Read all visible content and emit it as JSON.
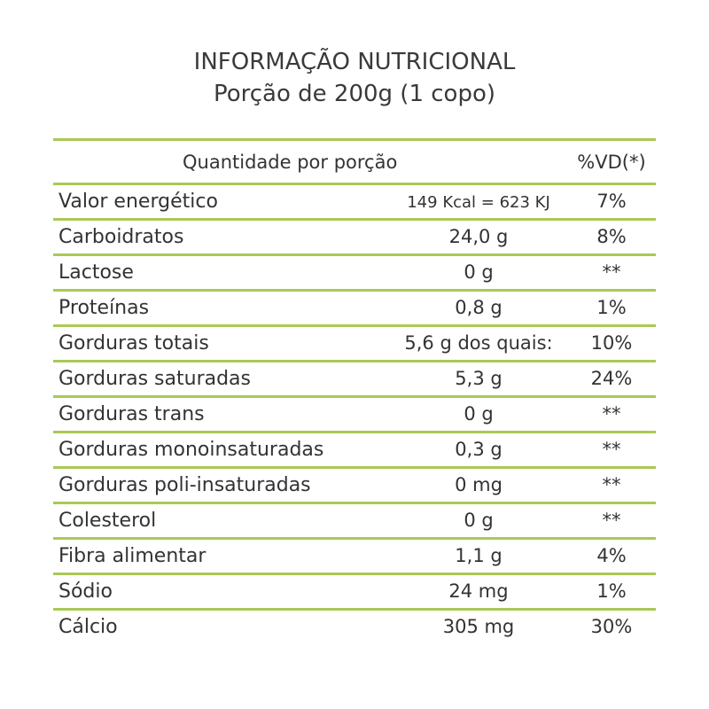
{
  "title": {
    "line1": "INFORMAÇÃO NUTRICIONAL",
    "line2": "Porção de 200g (1 copo)"
  },
  "header": {
    "quantity": "Quantidade por porção",
    "vd": "%VD(*)"
  },
  "rows": [
    {
      "name": "Valor energético",
      "amount": "149 Kcal = 623 KJ",
      "vd": "7%"
    },
    {
      "name": "Carboidratos",
      "amount": "24,0 g",
      "vd": "8%"
    },
    {
      "name": "Lactose",
      "amount": "0 g",
      "vd": "**"
    },
    {
      "name": "Proteínas",
      "amount": "0,8 g",
      "vd": "1%"
    },
    {
      "name": "Gorduras totais",
      "amount": "5,6 g dos quais:",
      "vd": "10%"
    },
    {
      "name": "Gorduras saturadas",
      "amount": "5,3 g",
      "vd": "24%"
    },
    {
      "name": "Gorduras trans",
      "amount": "0 g",
      "vd": "**"
    },
    {
      "name": "Gorduras monoinsaturadas",
      "amount": "0,3 g",
      "vd": "**"
    },
    {
      "name": "Gorduras poli-insaturadas",
      "amount": "0 mg",
      "vd": "**"
    },
    {
      "name": "Colesterol",
      "amount": "0 g",
      "vd": "**"
    },
    {
      "name": "Fibra alimentar",
      "amount": "1,1 g",
      "vd": "4%"
    },
    {
      "name": "Sódio",
      "amount": "24 mg",
      "vd": "1%"
    },
    {
      "name": "Cálcio",
      "amount": "305 mg",
      "vd": "30%"
    }
  ],
  "colors": {
    "rule": "#a9c955",
    "text": "#333333"
  }
}
